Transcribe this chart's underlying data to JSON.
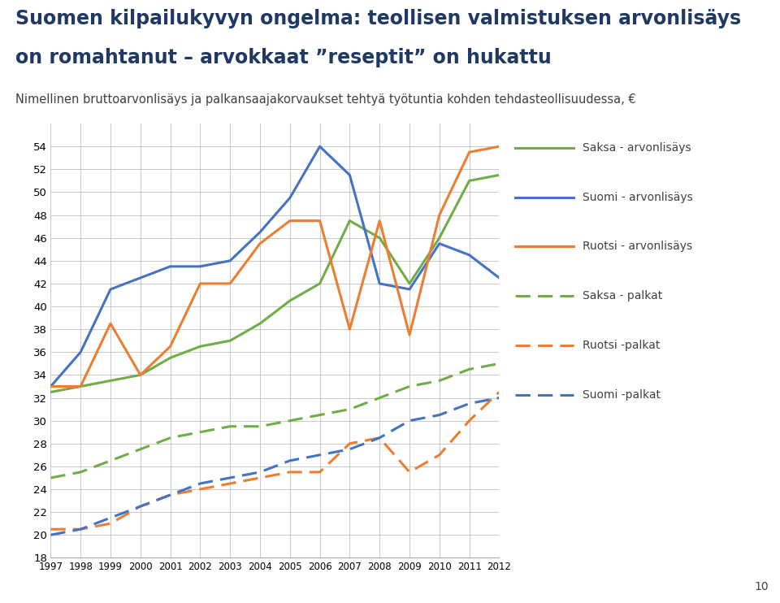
{
  "title_line1": "Suomen kilpailukyvyn ongelma: teollisen valmistuksen arvonlisäys",
  "title_line2": "on romahtanut – arvokkaat ”reseptit” on hukattu",
  "subtitle": "Nimellinen bruttoarvonlisäys ja palkansaajakorvaukset tehtyä työtuntia kohden tehdasteollisuudessa, €",
  "years": [
    1997,
    1998,
    1999,
    2000,
    2001,
    2002,
    2003,
    2004,
    2005,
    2006,
    2007,
    2008,
    2009,
    2010,
    2011,
    2012
  ],
  "saksa_arvonlisays": [
    32.5,
    33.0,
    33.5,
    34.0,
    35.5,
    36.5,
    37.0,
    38.5,
    40.5,
    42.0,
    47.5,
    46.0,
    42.0,
    46.0,
    51.0,
    51.5
  ],
  "suomi_arvonlisays": [
    33.0,
    36.0,
    41.5,
    42.5,
    43.5,
    43.5,
    44.0,
    46.5,
    49.5,
    54.0,
    51.5,
    42.0,
    41.5,
    45.5,
    44.5,
    42.5
  ],
  "ruotsi_arvonlisays": [
    33.0,
    33.0,
    38.5,
    34.0,
    36.5,
    42.0,
    42.0,
    45.5,
    47.5,
    47.5,
    38.0,
    47.5,
    37.5,
    48.0,
    53.5,
    54.0
  ],
  "saksa_palkat": [
    25.0,
    25.5,
    26.5,
    27.5,
    28.5,
    29.0,
    29.5,
    29.5,
    30.0,
    30.5,
    31.0,
    32.0,
    33.0,
    33.5,
    34.5,
    35.0
  ],
  "ruotsi_palkat": [
    20.5,
    20.5,
    21.0,
    22.5,
    23.5,
    24.0,
    24.5,
    25.0,
    25.5,
    25.5,
    28.0,
    28.5,
    25.5,
    27.0,
    30.0,
    32.5
  ],
  "suomi_palkat": [
    20.0,
    20.5,
    21.5,
    22.5,
    23.5,
    24.5,
    25.0,
    25.5,
    26.5,
    27.0,
    27.5,
    28.5,
    30.0,
    30.5,
    31.5,
    32.0
  ],
  "ylim": [
    18,
    56
  ],
  "yticks": [
    18,
    20,
    22,
    24,
    26,
    28,
    30,
    32,
    34,
    36,
    38,
    40,
    42,
    44,
    46,
    48,
    50,
    52,
    54
  ],
  "color_green": "#70AD47",
  "color_blue": "#4472C4",
  "color_orange": "#ED7D31",
  "page_number": "10",
  "background_color": "#FFFFFF",
  "grid_color": "#BFBFBF",
  "title_color": "#1F3864",
  "text_color": "#404040"
}
